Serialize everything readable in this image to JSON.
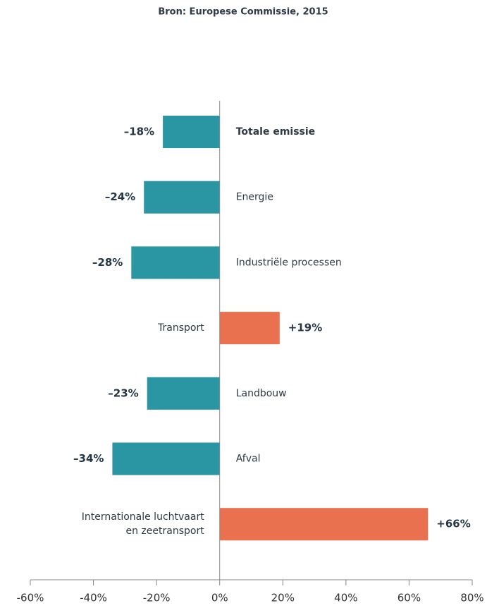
{
  "chart_data": {
    "type": "hbar",
    "title": "Bron: Europese Commissie, 2015",
    "categories": [
      "Totale emissie",
      "Energie",
      "Industriële processen",
      "Transport",
      "Landbouw",
      "Afval",
      [
        "Internationale luchtvaart",
        "en zeetransport"
      ]
    ],
    "values": [
      -18,
      -24,
      -28,
      19,
      -23,
      -34,
      66
    ],
    "value_labels": [
      "–18%",
      "–24%",
      "–28%",
      "+19%",
      "–23%",
      "–34%",
      "+66%"
    ],
    "colors": [
      "#2a95a3",
      "#2a95a3",
      "#2a95a3",
      "#e97150",
      "#2a95a3",
      "#2a95a3",
      "#e97150"
    ],
    "bold_categories": [
      0
    ],
    "xlim": [
      -60,
      80
    ],
    "xticks": [
      {
        "value": -60,
        "label": "-60%"
      },
      {
        "value": -40,
        "label": "-40%"
      },
      {
        "value": -20,
        "label": "-20%"
      },
      {
        "value": 0,
        "label": "0%"
      },
      {
        "value": 20,
        "label": "20%"
      },
      {
        "value": 40,
        "label": "40%"
      },
      {
        "value": 60,
        "label": "60%"
      },
      {
        "value": 80,
        "label": "80%"
      }
    ]
  }
}
